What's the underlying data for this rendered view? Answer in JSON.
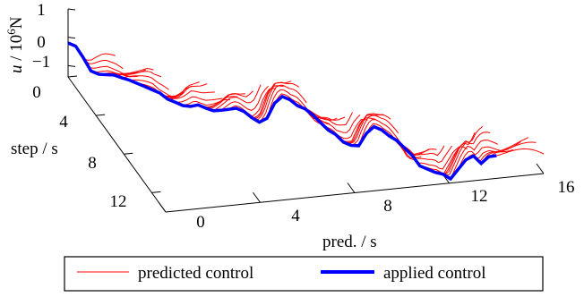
{
  "chart_data": {
    "type": "surface3d",
    "axes": {
      "x": {
        "label": "pred.  / s",
        "ticks": [
          "0",
          "4",
          "8",
          "12",
          "16"
        ],
        "range": [
          0,
          16
        ]
      },
      "y": {
        "label": "step / s",
        "ticks": [
          "0",
          "4",
          "8",
          "12"
        ],
        "range": [
          0,
          14
        ]
      },
      "z": {
        "label_main": "u",
        "label_rest": " / 10",
        "label_exp": "6",
        "label_unit": "N",
        "ticks": [
          "1",
          "0",
          "−1"
        ],
        "range": [
          -1.4,
          1
        ]
      }
    },
    "legend": {
      "entries": [
        {
          "label": "predicted control",
          "color": "#ff0000"
        },
        {
          "label": "applied control",
          "color": "#0000ff"
        }
      ]
    },
    "applied_control": {
      "step": [
        0.0,
        0.25,
        0.5,
        0.75,
        1.0,
        1.25,
        1.5,
        1.75,
        2.0,
        2.25,
        2.5,
        2.75,
        3.0,
        3.25,
        3.5,
        3.75,
        4.0,
        4.25,
        4.5,
        4.75,
        5.0,
        5.25,
        5.5,
        5.75,
        6.0,
        6.25,
        6.5,
        6.75,
        7.0,
        7.25,
        7.5,
        7.75,
        8.0,
        8.25,
        8.5,
        8.75,
        9.0,
        9.25,
        9.5,
        9.75,
        10.0,
        10.25,
        10.5,
        10.75,
        11.0,
        11.25,
        11.5,
        11.75,
        12.0,
        12.25,
        12.5,
        12.75,
        13.0,
        13.25,
        13.5,
        13.75,
        14.0
      ],
      "u": [
        -0.2,
        -0.25,
        -0.6,
        -1.0,
        -1.05,
        -1.0,
        -0.95,
        -0.98,
        -1.0,
        -1.05,
        -1.1,
        -1.15,
        -1.2,
        -1.35,
        -1.4,
        -1.45,
        -1.42,
        -1.3,
        -1.35,
        -1.38,
        -1.3,
        -1.2,
        -1.1,
        -1.15,
        -1.3,
        -1.4,
        -1.2,
        -0.6,
        -0.3,
        -0.35,
        -0.5,
        -0.55,
        -0.7,
        -0.9,
        -1.1,
        -1.2,
        -1.4,
        -1.45,
        -1.4,
        -0.9,
        -0.6,
        -0.65,
        -0.8,
        -0.9,
        -1.1,
        -1.3,
        -1.6,
        -1.65,
        -1.7,
        -1.7,
        -1.8,
        -1.4,
        -1.0,
        -0.8,
        -1.0,
        -0.7,
        -0.6
      ]
    },
    "prediction_horizon": 2,
    "pred_start_by_step": "equal to step time",
    "series_note": "one predicted control trajectory per step; first point equals applied control"
  }
}
